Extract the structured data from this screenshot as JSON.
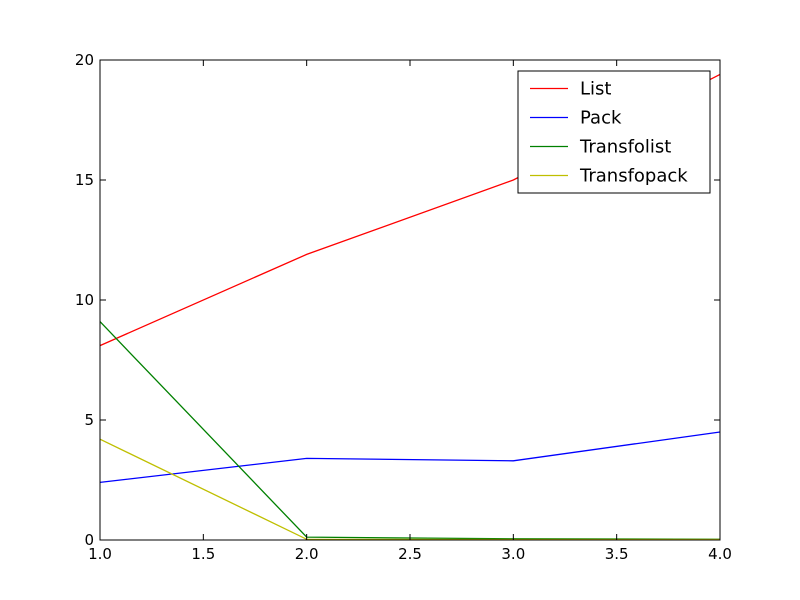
{
  "chart_data": {
    "type": "line",
    "x": [
      1.0,
      2.0,
      3.0,
      4.0
    ],
    "xlim": [
      1.0,
      4.0
    ],
    "ylim": [
      0,
      20
    ],
    "xticks": [
      "1.0",
      "1.5",
      "2.0",
      "2.5",
      "3.0",
      "3.5",
      "4.0"
    ],
    "xtick_values": [
      1.0,
      1.5,
      2.0,
      2.5,
      3.0,
      3.5,
      4.0
    ],
    "yticks": [
      "0",
      "5",
      "10",
      "15",
      "20"
    ],
    "ytick_values": [
      0,
      5,
      10,
      15,
      20
    ],
    "grid": false,
    "legend_position": "top-right",
    "series": [
      {
        "name": "List",
        "color": "#ff0000",
        "values": [
          8.1,
          11.9,
          15.0,
          19.4
        ]
      },
      {
        "name": "Pack",
        "color": "#0000ff",
        "values": [
          2.4,
          3.4,
          3.3,
          4.5
        ]
      },
      {
        "name": "Transfolist",
        "color": "#008000",
        "values": [
          9.1,
          0.12,
          0.05,
          0.03
        ]
      },
      {
        "name": "Transfopack",
        "color": "#bfbf00",
        "values": [
          4.2,
          0.03,
          0.02,
          0.02
        ]
      }
    ]
  }
}
